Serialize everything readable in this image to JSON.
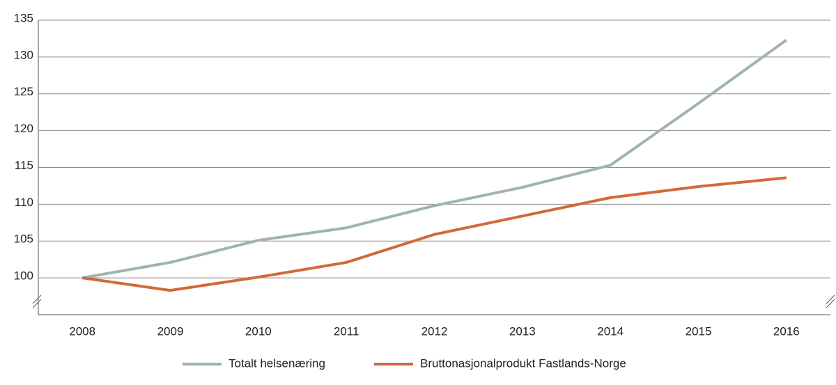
{
  "chart_data": {
    "type": "line",
    "categories": [
      "2008",
      "2009",
      "2010",
      "2011",
      "2012",
      "2013",
      "2014",
      "2015",
      "2016"
    ],
    "series": [
      {
        "name": "Totalt helsenæring",
        "color": "#9fb3b3",
        "values": [
          100,
          102.1,
          105.1,
          106.8,
          109.8,
          112.3,
          115.3,
          123.7,
          132.3
        ]
      },
      {
        "name": "Bruttonasjonalprodukt Fastlands-Norge",
        "color": "#d2693a",
        "values": [
          100,
          98.3,
          100.1,
          102.1,
          105.9,
          108.4,
          110.9,
          112.4,
          113.6
        ]
      }
    ],
    "ylim": [
      95,
      135
    ],
    "yticks": [
      100,
      105,
      110,
      115,
      120,
      125,
      130,
      135
    ],
    "grid": true,
    "legend": "bottom"
  }
}
